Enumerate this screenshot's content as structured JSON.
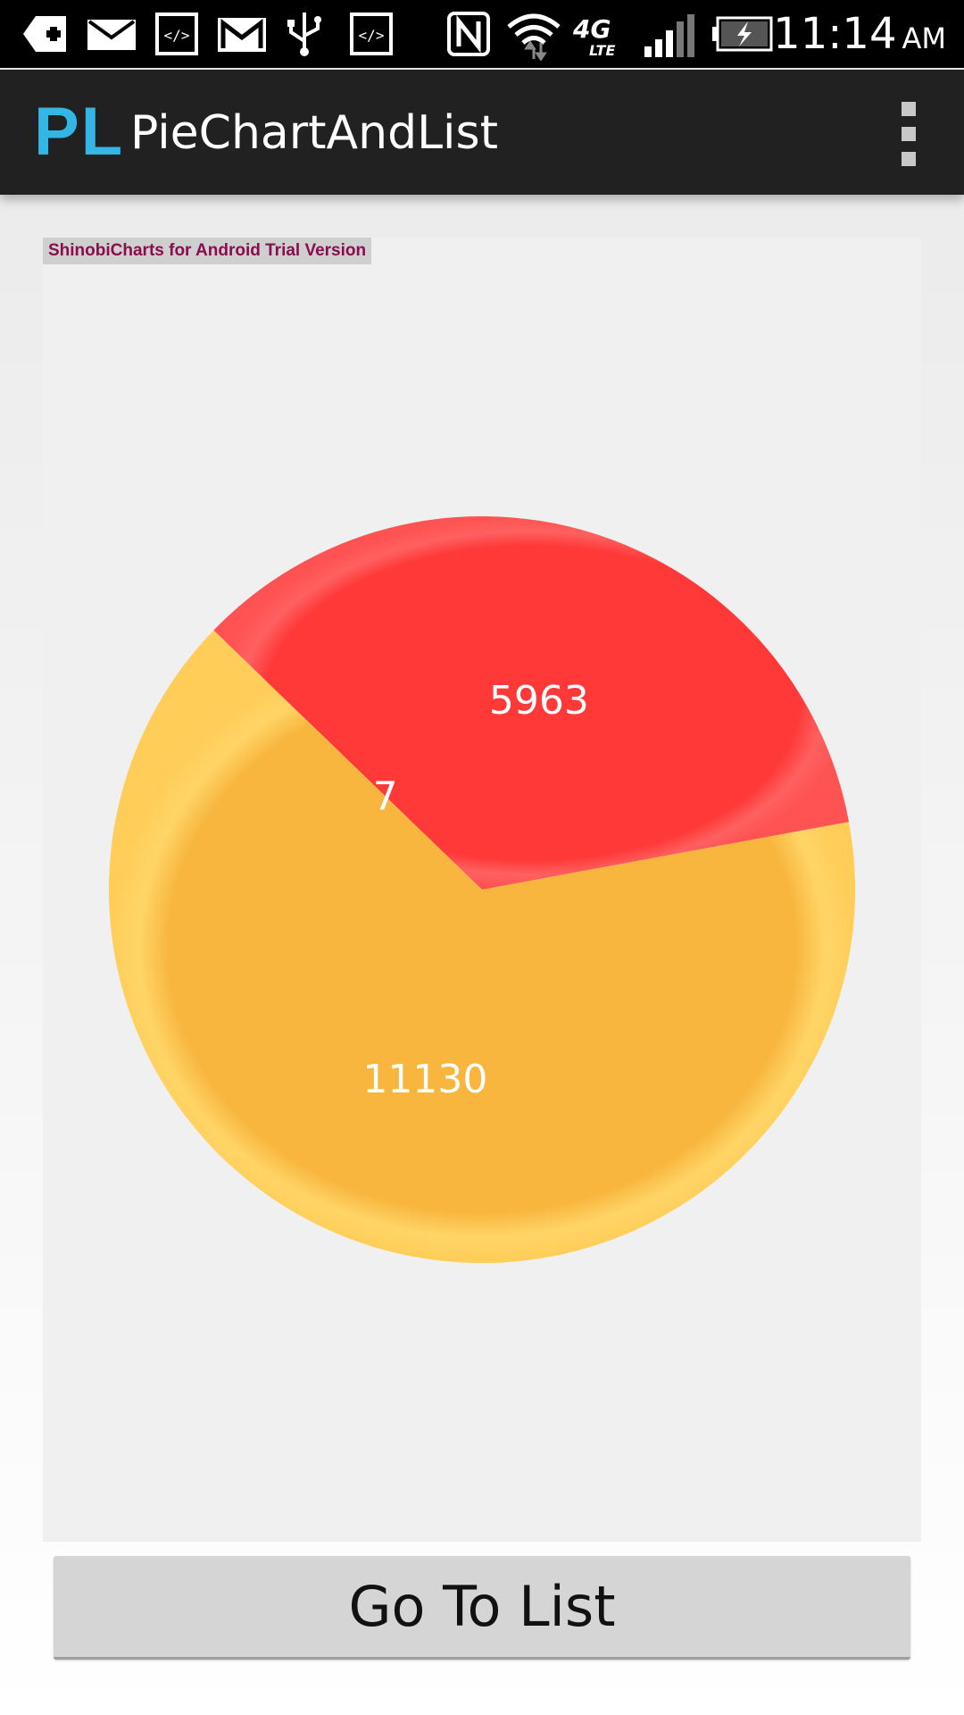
{
  "status_bar": {
    "icons": [
      "add-notification-icon",
      "email-icon",
      "code-icon",
      "gmail-icon",
      "usb-icon",
      "code-icon",
      "nfc-icon",
      "wifi-icon",
      "lte-signal-icon",
      "battery-charging-icon"
    ],
    "network_label": "4G",
    "network_sub": "LTE",
    "time": "11:14",
    "ampm": "AM"
  },
  "action_bar": {
    "logo": "PL",
    "title": "PieChartAndList"
  },
  "chart": {
    "watermark": "ShinobiCharts for Android Trial Version"
  },
  "chart_data": {
    "type": "pie",
    "slices": [
      {
        "label": "5963",
        "value": 5963,
        "color": "#ff3838",
        "rim": "#ff6060"
      },
      {
        "label": "11130",
        "value": 11130,
        "color": "#f8b63e",
        "rim": "#ffd567"
      },
      {
        "label": "7",
        "value": 7,
        "color": "#f8b63e",
        "rim": "#ffd567"
      }
    ]
  },
  "button": {
    "label": "Go To List"
  }
}
